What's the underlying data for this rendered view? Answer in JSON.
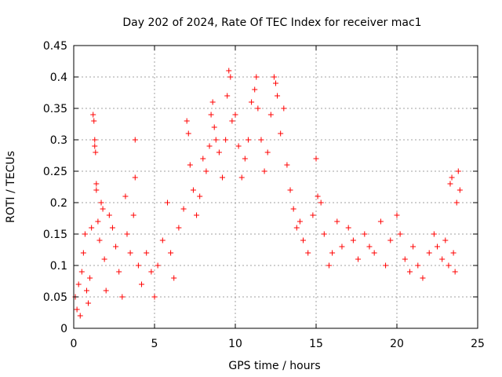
{
  "chart_data": {
    "type": "scatter",
    "title": "Day 202 of 2024, Rate Of TEC Index for receiver mac1",
    "xlabel": "GPS time / hours",
    "ylabel": "ROTI / TECUs",
    "xlim": [
      0,
      25
    ],
    "ylim": [
      0,
      0.45
    ],
    "xticks": [
      0,
      5,
      10,
      15,
      20,
      25
    ],
    "xtick_labels": [
      "0",
      "5",
      "10",
      "15",
      "20",
      "25"
    ],
    "yticks": [
      0,
      0.05,
      0.1,
      0.15,
      0.2,
      0.25,
      0.3,
      0.35,
      0.4,
      0.45
    ],
    "ytick_labels": [
      "0",
      "0.05",
      "0.1",
      "0.15",
      "0.2",
      "0.25",
      "0.3",
      "0.35",
      "0.4",
      "0.45"
    ],
    "grid": true,
    "marker": "+",
    "color": "#ff0000",
    "series": [
      {
        "points": [
          [
            0.1,
            0.05
          ],
          [
            0.2,
            0.03
          ],
          [
            0.3,
            0.07
          ],
          [
            0.4,
            0.02
          ],
          [
            0.5,
            0.09
          ],
          [
            0.6,
            0.12
          ],
          [
            0.7,
            0.15
          ],
          [
            0.8,
            0.06
          ],
          [
            0.9,
            0.04
          ],
          [
            1.0,
            0.08
          ],
          [
            1.1,
            0.16
          ],
          [
            1.2,
            0.34
          ],
          [
            1.25,
            0.33
          ],
          [
            1.3,
            0.3
          ],
          [
            1.3,
            0.29
          ],
          [
            1.35,
            0.28
          ],
          [
            1.4,
            0.23
          ],
          [
            1.4,
            0.22
          ],
          [
            1.5,
            0.17
          ],
          [
            1.6,
            0.14
          ],
          [
            1.7,
            0.2
          ],
          [
            1.8,
            0.19
          ],
          [
            1.9,
            0.11
          ],
          [
            2.0,
            0.06
          ],
          [
            2.2,
            0.18
          ],
          [
            2.4,
            0.16
          ],
          [
            2.6,
            0.13
          ],
          [
            2.8,
            0.09
          ],
          [
            3.0,
            0.05
          ],
          [
            3.2,
            0.21
          ],
          [
            3.3,
            0.15
          ],
          [
            3.5,
            0.12
          ],
          [
            3.7,
            0.18
          ],
          [
            3.8,
            0.3
          ],
          [
            3.8,
            0.24
          ],
          [
            4.0,
            0.1
          ],
          [
            4.2,
            0.07
          ],
          [
            4.5,
            0.12
          ],
          [
            4.8,
            0.09
          ],
          [
            5.0,
            0.05
          ],
          [
            5.2,
            0.1
          ],
          [
            5.5,
            0.14
          ],
          [
            5.8,
            0.2
          ],
          [
            6.0,
            0.12
          ],
          [
            6.2,
            0.08
          ],
          [
            6.5,
            0.16
          ],
          [
            6.8,
            0.19
          ],
          [
            7.0,
            0.33
          ],
          [
            7.1,
            0.31
          ],
          [
            7.2,
            0.26
          ],
          [
            7.4,
            0.22
          ],
          [
            7.6,
            0.18
          ],
          [
            7.8,
            0.21
          ],
          [
            8.0,
            0.27
          ],
          [
            8.2,
            0.25
          ],
          [
            8.4,
            0.29
          ],
          [
            8.5,
            0.34
          ],
          [
            8.6,
            0.36
          ],
          [
            8.7,
            0.32
          ],
          [
            8.8,
            0.3
          ],
          [
            9.0,
            0.28
          ],
          [
            9.2,
            0.24
          ],
          [
            9.4,
            0.3
          ],
          [
            9.5,
            0.37
          ],
          [
            9.6,
            0.41
          ],
          [
            9.7,
            0.4
          ],
          [
            9.8,
            0.33
          ],
          [
            10.0,
            0.34
          ],
          [
            10.2,
            0.29
          ],
          [
            10.4,
            0.24
          ],
          [
            10.6,
            0.27
          ],
          [
            10.8,
            0.3
          ],
          [
            11.0,
            0.36
          ],
          [
            11.2,
            0.38
          ],
          [
            11.3,
            0.4
          ],
          [
            11.4,
            0.35
          ],
          [
            11.6,
            0.3
          ],
          [
            11.8,
            0.25
          ],
          [
            12.0,
            0.28
          ],
          [
            12.2,
            0.34
          ],
          [
            12.4,
            0.4
          ],
          [
            12.5,
            0.39
          ],
          [
            12.6,
            0.37
          ],
          [
            12.8,
            0.31
          ],
          [
            13.0,
            0.35
          ],
          [
            13.2,
            0.26
          ],
          [
            13.4,
            0.22
          ],
          [
            13.6,
            0.19
          ],
          [
            13.8,
            0.16
          ],
          [
            14.0,
            0.17
          ],
          [
            14.2,
            0.14
          ],
          [
            14.5,
            0.12
          ],
          [
            14.8,
            0.18
          ],
          [
            15.0,
            0.27
          ],
          [
            15.1,
            0.21
          ],
          [
            15.3,
            0.2
          ],
          [
            15.5,
            0.15
          ],
          [
            15.8,
            0.1
          ],
          [
            16.0,
            0.12
          ],
          [
            16.3,
            0.17
          ],
          [
            16.6,
            0.13
          ],
          [
            17.0,
            0.16
          ],
          [
            17.3,
            0.14
          ],
          [
            17.6,
            0.11
          ],
          [
            18.0,
            0.15
          ],
          [
            18.3,
            0.13
          ],
          [
            18.6,
            0.12
          ],
          [
            19.0,
            0.17
          ],
          [
            19.3,
            0.1
          ],
          [
            19.6,
            0.14
          ],
          [
            20.0,
            0.18
          ],
          [
            20.2,
            0.15
          ],
          [
            20.5,
            0.11
          ],
          [
            20.8,
            0.09
          ],
          [
            21.0,
            0.13
          ],
          [
            21.3,
            0.1
          ],
          [
            21.6,
            0.08
          ],
          [
            22.0,
            0.12
          ],
          [
            22.3,
            0.15
          ],
          [
            22.5,
            0.13
          ],
          [
            22.8,
            0.11
          ],
          [
            23.0,
            0.14
          ],
          [
            23.2,
            0.1
          ],
          [
            23.3,
            0.23
          ],
          [
            23.4,
            0.24
          ],
          [
            23.5,
            0.12
          ],
          [
            23.6,
            0.09
          ],
          [
            23.7,
            0.2
          ],
          [
            23.8,
            0.25
          ],
          [
            23.9,
            0.22
          ]
        ]
      }
    ]
  }
}
